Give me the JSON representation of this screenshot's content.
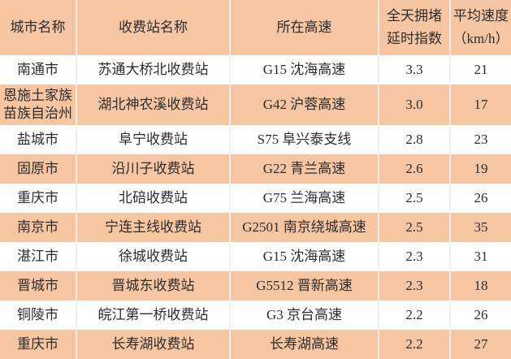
{
  "colors": {
    "header_bg": "#f6c5a2",
    "zebra_bg": "#f6c5a2",
    "white_row_bg": "#ffffff",
    "grid_line": "#f1efed",
    "text": "#2d2d2d"
  },
  "header_display": {
    "city": "城市名称",
    "station": "收费站名称",
    "highway": "所在高速",
    "index_lines": [
      "全天拥堵",
      "延时指数"
    ],
    "speed_lines": [
      "平均速度",
      "（km/h）"
    ]
  },
  "chart_data": {
    "type": "table",
    "columns": [
      "城市名称",
      "收费站名称",
      "所在高速",
      "全天拥堵延时指数",
      "平均速度（km/h）"
    ],
    "rows": [
      [
        "南通市",
        "苏通大桥北收费站",
        "G15 沈海高速",
        "3.3",
        "21"
      ],
      [
        "恩施土家族苗族自治州",
        "湖北神农溪收费站",
        "G42 沪蓉高速",
        "3.0",
        "17"
      ],
      [
        "盐城市",
        "阜宁收费站",
        "S75 阜兴泰支线",
        "2.8",
        "23"
      ],
      [
        "固原市",
        "沿川子收费站",
        "G22 青兰高速",
        "2.6",
        "19"
      ],
      [
        "重庆市",
        "北碚收费站",
        "G75 兰海高速",
        "2.5",
        "26"
      ],
      [
        "南京市",
        "宁连主线收费站",
        "G2501 南京绕城高速",
        "2.5",
        "35"
      ],
      [
        "湛江市",
        "徐城收费站",
        "G15 沈海高速",
        "2.3",
        "31"
      ],
      [
        "晋城市",
        "晋城东收费站",
        "G5512 晋新高速",
        "2.3",
        "18"
      ],
      [
        "铜陵市",
        "皖江第一桥收费站",
        "G3 京台高速",
        "2.2",
        "26"
      ],
      [
        "重庆市",
        "长寿湖收费站",
        "长寿湖高速",
        "2.2",
        "27"
      ]
    ]
  }
}
